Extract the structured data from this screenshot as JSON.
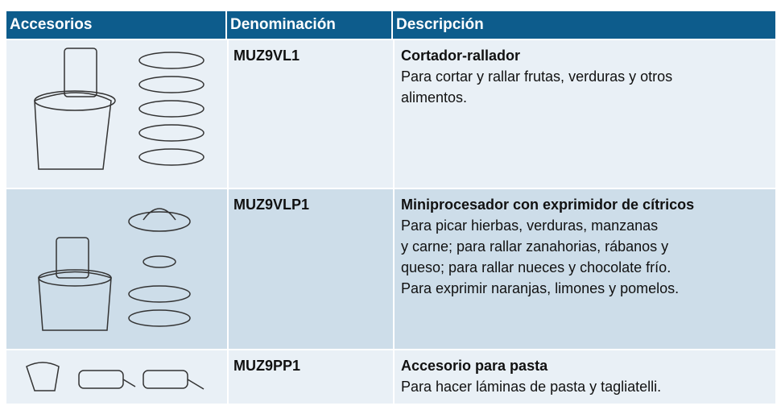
{
  "table": {
    "header": [
      "Accesorios",
      "Denominación",
      "Descripción"
    ],
    "rows": [
      {
        "code": "MUZ9VL1",
        "title": "Cortador-rallador",
        "lines": [
          "Para cortar y rallar frutas, verduras y otros",
          "alimentos."
        ]
      },
      {
        "code": "MUZ9VLP1",
        "title": "Miniprocesador con exprimidor de cítricos",
        "lines": [
          "Para picar hierbas, verduras, manzanas",
          "y carne; para rallar zanahorias, rábanos y",
          "queso; para rallar nueces y chocolate frío.",
          "Para exprimir naranjas, limones y pomelos."
        ]
      },
      {
        "code": "MUZ9PP1",
        "title": "Accesorio para pasta",
        "lines": [
          "Para hacer láminas de pasta y tagliatelli."
        ]
      }
    ]
  }
}
